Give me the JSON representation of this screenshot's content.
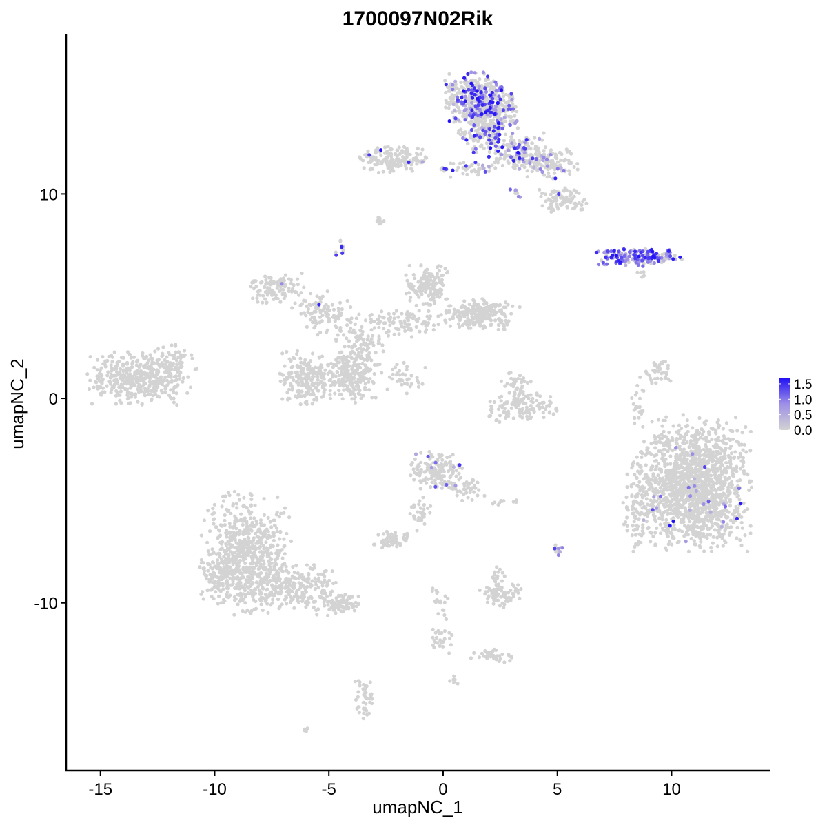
{
  "chart_data": {
    "type": "scatter",
    "title": "1700097N02Rik",
    "xlabel": "umapNC_1",
    "ylabel": "umapNC_2",
    "xlim": [
      -16.5,
      14.3
    ],
    "ylim": [
      -18.2,
      17.8
    ],
    "x_ticks": [
      -15,
      -10,
      -5,
      0,
      5,
      10
    ],
    "x_tick_labels": [
      "-15",
      "-10",
      "-5",
      "0",
      "5",
      "10"
    ],
    "y_ticks": [
      -10,
      0,
      10
    ],
    "y_tick_labels": [
      "-10",
      "0",
      "10"
    ],
    "grid": false,
    "legend": {
      "position": "right",
      "type": "colorbar",
      "range": [
        0,
        1.7
      ],
      "ticks": [
        0,
        0.5,
        1.0,
        1.5
      ],
      "tick_labels": [
        "0.0",
        "0.5",
        "1.0",
        "1.5"
      ],
      "low_color": "#d3d3d3",
      "high_color": "#1f0ff5"
    },
    "clusters": [
      {
        "cx": -13.4,
        "cy": 1.0,
        "sx": 1.0,
        "sy": 0.6,
        "n": 380,
        "expr": 0
      },
      {
        "cx": -12.0,
        "cy": 1.6,
        "sx": 0.6,
        "sy": 0.5,
        "n": 90,
        "expr": 0
      },
      {
        "cx": -8.6,
        "cy": -7.6,
        "sx": 0.9,
        "sy": 1.4,
        "n": 650,
        "expr": 0
      },
      {
        "cx": -9.6,
        "cy": -8.7,
        "sx": 0.5,
        "sy": 0.6,
        "n": 120,
        "expr": 0
      },
      {
        "cx": -6.5,
        "cy": -9.2,
        "sx": 0.9,
        "sy": 0.5,
        "n": 220,
        "expr": 0
      },
      {
        "cx": -4.6,
        "cy": -10.1,
        "sx": 0.5,
        "sy": 0.25,
        "n": 80,
        "expr": 0
      },
      {
        "cx": -3.4,
        "cy": -14.7,
        "sx": 0.22,
        "sy": 0.5,
        "n": 45,
        "expr": 0.02
      },
      {
        "cx": -6.0,
        "cy": -16.3,
        "sx": 0.1,
        "sy": 0.1,
        "n": 4,
        "expr": 0
      },
      {
        "cx": -6.0,
        "cy": 1.0,
        "sx": 0.6,
        "sy": 0.6,
        "n": 220,
        "expr": 0
      },
      {
        "cx": -4.1,
        "cy": 1.1,
        "sx": 0.55,
        "sy": 0.6,
        "n": 230,
        "expr": 0
      },
      {
        "cx": -7.3,
        "cy": 5.4,
        "sx": 0.6,
        "sy": 0.35,
        "n": 110,
        "expr": 0.01
      },
      {
        "cx": -5.3,
        "cy": 4.2,
        "sx": 0.6,
        "sy": 0.5,
        "n": 100,
        "expr": 0.01
      },
      {
        "cx": -3.6,
        "cy": 2.9,
        "sx": 0.5,
        "sy": 0.6,
        "n": 100,
        "expr": 0
      },
      {
        "cx": -1.7,
        "cy": 3.7,
        "sx": 0.7,
        "sy": 0.35,
        "n": 90,
        "expr": 0
      },
      {
        "cx": -0.7,
        "cy": 5.5,
        "sx": 0.45,
        "sy": 0.5,
        "n": 150,
        "expr": 0
      },
      {
        "cx": 1.6,
        "cy": 4.1,
        "sx": 0.8,
        "sy": 0.35,
        "n": 220,
        "expr": 0
      },
      {
        "cx": -1.8,
        "cy": 1.0,
        "sx": 0.5,
        "sy": 0.35,
        "n": 40,
        "expr": 0
      },
      {
        "cx": -4.5,
        "cy": 7.3,
        "sx": 0.1,
        "sy": 0.2,
        "n": 14,
        "expr": 0.2
      },
      {
        "cx": -2.8,
        "cy": 8.7,
        "sx": 0.12,
        "sy": 0.08,
        "n": 10,
        "expr": 0
      },
      {
        "cx": -2.2,
        "cy": 11.7,
        "sx": 0.7,
        "sy": 0.3,
        "n": 160,
        "expr": 0.02
      },
      {
        "cx": 1.3,
        "cy": 14.7,
        "sx": 0.6,
        "sy": 0.6,
        "n": 320,
        "expr": 0.3
      },
      {
        "cx": 2.3,
        "cy": 14.1,
        "sx": 0.5,
        "sy": 0.6,
        "n": 220,
        "expr": 0.3
      },
      {
        "cx": 1.7,
        "cy": 12.9,
        "sx": 0.5,
        "sy": 0.4,
        "n": 120,
        "expr": 0.25
      },
      {
        "cx": 3.2,
        "cy": 12.0,
        "sx": 0.6,
        "sy": 0.45,
        "n": 160,
        "expr": 0.25
      },
      {
        "cx": 4.7,
        "cy": 11.5,
        "sx": 0.6,
        "sy": 0.4,
        "n": 130,
        "expr": 0.12
      },
      {
        "cx": 5.2,
        "cy": 9.7,
        "sx": 0.5,
        "sy": 0.3,
        "n": 100,
        "expr": 0.02
      },
      {
        "cx": 0.8,
        "cy": 11.2,
        "sx": 0.6,
        "sy": 0.2,
        "n": 40,
        "expr": 0.15
      },
      {
        "cx": 3.2,
        "cy": 10.0,
        "sx": 0.15,
        "sy": 0.1,
        "n": 8,
        "expr": 0.6
      },
      {
        "cx": 8.6,
        "cy": 6.9,
        "sx": 0.9,
        "sy": 0.2,
        "n": 170,
        "expr": 0.75
      },
      {
        "cx": 8.8,
        "cy": 6.1,
        "sx": 0.15,
        "sy": 0.1,
        "n": 5,
        "expr": 0.4
      },
      {
        "cx": 11.0,
        "cy": -4.2,
        "sx": 1.15,
        "sy": 1.5,
        "n": 1500,
        "expr": 0.015
      },
      {
        "cx": 8.6,
        "cy": -5.3,
        "sx": 0.4,
        "sy": 1.0,
        "n": 110,
        "expr": 0.02
      },
      {
        "cx": 9.5,
        "cy": 1.3,
        "sx": 0.3,
        "sy": 0.3,
        "n": 40,
        "expr": 0
      },
      {
        "cx": 8.5,
        "cy": -0.1,
        "sx": 0.15,
        "sy": 0.6,
        "n": 25,
        "expr": 0
      },
      {
        "cx": 3.5,
        "cy": -0.4,
        "sx": 0.85,
        "sy": 0.35,
        "n": 130,
        "expr": 0.01
      },
      {
        "cx": 3.2,
        "cy": 0.8,
        "sx": 0.3,
        "sy": 0.25,
        "n": 30,
        "expr": 0
      },
      {
        "cx": -0.3,
        "cy": -3.5,
        "sx": 0.55,
        "sy": 0.45,
        "n": 160,
        "expr": 0.03
      },
      {
        "cx": 1.0,
        "cy": -4.4,
        "sx": 0.4,
        "sy": 0.3,
        "n": 40,
        "expr": 0
      },
      {
        "cx": -2.3,
        "cy": -6.9,
        "sx": 0.45,
        "sy": 0.2,
        "n": 60,
        "expr": 0
      },
      {
        "cx": -1.1,
        "cy": -5.6,
        "sx": 0.25,
        "sy": 0.4,
        "n": 30,
        "expr": 0
      },
      {
        "cx": 2.5,
        "cy": -9.6,
        "sx": 0.5,
        "sy": 0.3,
        "n": 80,
        "expr": 0
      },
      {
        "cx": 2.4,
        "cy": -8.7,
        "sx": 0.15,
        "sy": 0.25,
        "n": 15,
        "expr": 0
      },
      {
        "cx": 5.0,
        "cy": -7.4,
        "sx": 0.1,
        "sy": 0.2,
        "n": 12,
        "expr": 0.1
      },
      {
        "cx": 2.3,
        "cy": -12.6,
        "sx": 0.5,
        "sy": 0.15,
        "n": 40,
        "expr": 0
      },
      {
        "cx": -0.2,
        "cy": -10.0,
        "sx": 0.2,
        "sy": 0.55,
        "n": 20,
        "expr": 0
      },
      {
        "cx": -0.1,
        "cy": -11.6,
        "sx": 0.25,
        "sy": 0.4,
        "n": 25,
        "expr": 0
      },
      {
        "cx": 0.5,
        "cy": -13.8,
        "sx": 0.12,
        "sy": 0.12,
        "n": 6,
        "expr": 0
      },
      {
        "cx": 2.7,
        "cy": -5.0,
        "sx": 0.3,
        "sy": 0.1,
        "n": 10,
        "expr": 0
      }
    ]
  }
}
